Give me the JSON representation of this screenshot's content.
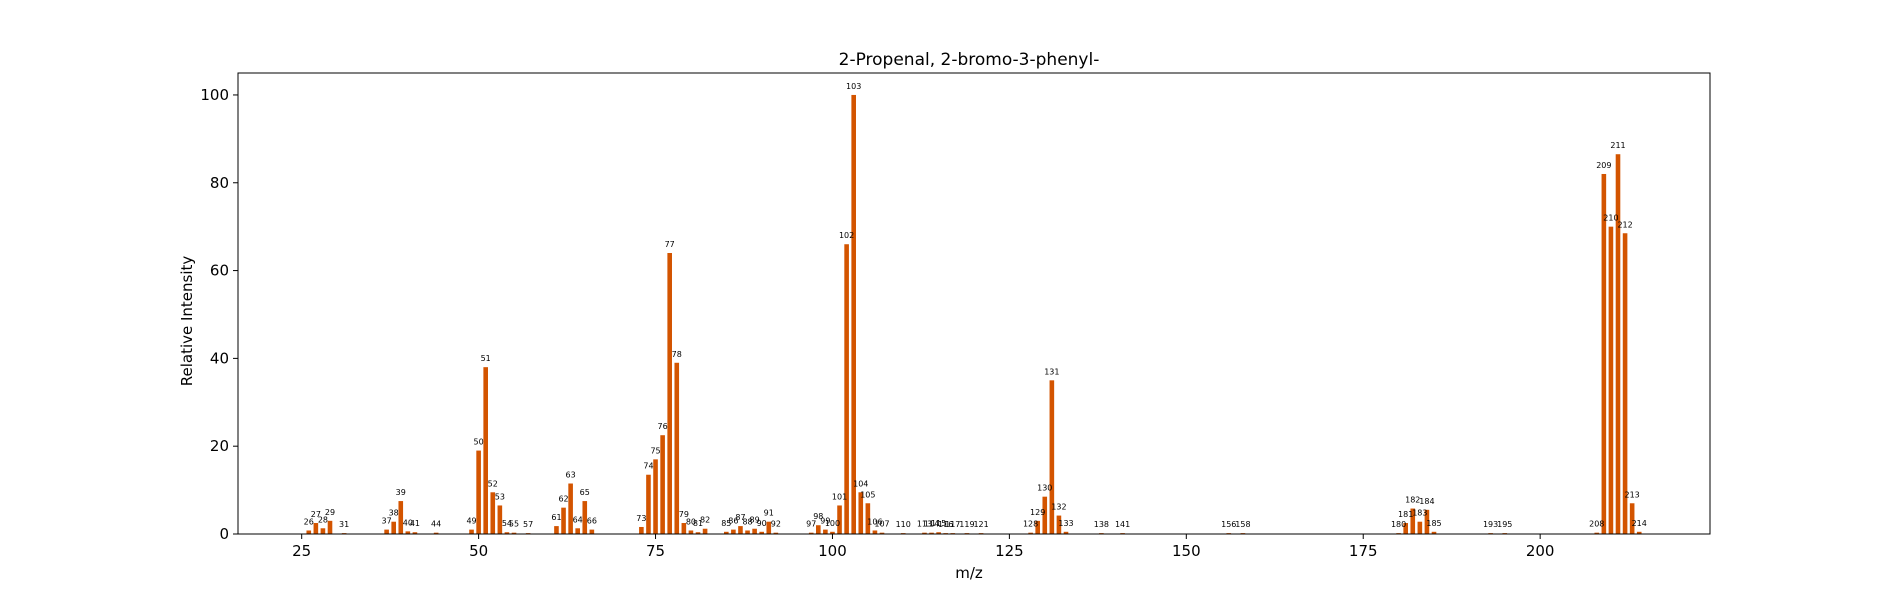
{
  "chart_data": {
    "type": "bar",
    "title": "2-Propenal, 2-bromo-3-phenyl-",
    "xlabel": "m/z",
    "ylabel": "Relative Intensity",
    "xlim": [
      16,
      224
    ],
    "ylim": [
      0,
      105
    ],
    "xticks": [
      25,
      50,
      75,
      100,
      125,
      150,
      175,
      200
    ],
    "yticks": [
      0,
      20,
      40,
      60,
      80,
      100
    ],
    "grid": false,
    "bar_color": "#d35400",
    "points": [
      {
        "x": 26,
        "y": 0.8,
        "label": "26"
      },
      {
        "x": 27,
        "y": 2.5,
        "label": "27"
      },
      {
        "x": 28,
        "y": 1.3,
        "label": "28"
      },
      {
        "x": 29,
        "y": 3.0,
        "label": "29"
      },
      {
        "x": 31,
        "y": 0.2,
        "label": "31"
      },
      {
        "x": 37,
        "y": 1.0,
        "label": "37"
      },
      {
        "x": 38,
        "y": 2.8,
        "label": "38"
      },
      {
        "x": 39,
        "y": 7.5,
        "label": "39"
      },
      {
        "x": 40,
        "y": 0.6,
        "label": "40"
      },
      {
        "x": 41,
        "y": 0.4,
        "label": "41"
      },
      {
        "x": 44,
        "y": 0.3,
        "label": "44"
      },
      {
        "x": 49,
        "y": 1.0,
        "label": "49"
      },
      {
        "x": 50,
        "y": 19.0,
        "label": "50"
      },
      {
        "x": 51,
        "y": 38.0,
        "label": "51"
      },
      {
        "x": 52,
        "y": 9.5,
        "label": "52"
      },
      {
        "x": 53,
        "y": 6.5,
        "label": "53"
      },
      {
        "x": 54,
        "y": 0.4,
        "label": "54"
      },
      {
        "x": 55,
        "y": 0.3,
        "label": "55"
      },
      {
        "x": 57,
        "y": 0.2,
        "label": "57"
      },
      {
        "x": 61,
        "y": 1.8,
        "label": "61"
      },
      {
        "x": 62,
        "y": 6.0,
        "label": "62"
      },
      {
        "x": 63,
        "y": 11.5,
        "label": "63"
      },
      {
        "x": 64,
        "y": 1.3,
        "label": "64"
      },
      {
        "x": 65,
        "y": 7.5,
        "label": "65"
      },
      {
        "x": 66,
        "y": 1.0,
        "label": "66"
      },
      {
        "x": 73,
        "y": 1.6,
        "label": "73"
      },
      {
        "x": 74,
        "y": 13.5,
        "label": "74"
      },
      {
        "x": 75,
        "y": 17.0,
        "label": "75"
      },
      {
        "x": 76,
        "y": 22.5,
        "label": "76"
      },
      {
        "x": 77,
        "y": 64.0,
        "label": "77"
      },
      {
        "x": 78,
        "y": 39.0,
        "label": "78"
      },
      {
        "x": 79,
        "y": 2.5,
        "label": "79"
      },
      {
        "x": 80,
        "y": 0.8,
        "label": "80"
      },
      {
        "x": 81,
        "y": 0.4,
        "label": "81"
      },
      {
        "x": 82,
        "y": 1.2,
        "label": "82"
      },
      {
        "x": 85,
        "y": 0.5,
        "label": "85"
      },
      {
        "x": 86,
        "y": 1.0,
        "label": "86"
      },
      {
        "x": 87,
        "y": 1.8,
        "label": "87"
      },
      {
        "x": 88,
        "y": 0.8,
        "label": "88"
      },
      {
        "x": 89,
        "y": 1.2,
        "label": "89"
      },
      {
        "x": 90,
        "y": 0.5,
        "label": "90"
      },
      {
        "x": 91,
        "y": 2.8,
        "label": "91"
      },
      {
        "x": 92,
        "y": 0.3,
        "label": "92"
      },
      {
        "x": 97,
        "y": 0.3,
        "label": "97"
      },
      {
        "x": 98,
        "y": 2.0,
        "label": "98"
      },
      {
        "x": 99,
        "y": 1.0,
        "label": "99"
      },
      {
        "x": 100,
        "y": 0.5,
        "label": "100"
      },
      {
        "x": 101,
        "y": 6.5,
        "label": "101"
      },
      {
        "x": 102,
        "y": 66.0,
        "label": "102"
      },
      {
        "x": 103,
        "y": 100.0,
        "label": "103"
      },
      {
        "x": 104,
        "y": 9.5,
        "label": "104"
      },
      {
        "x": 105,
        "y": 7.0,
        "label": "105"
      },
      {
        "x": 106,
        "y": 0.8,
        "label": "106"
      },
      {
        "x": 107,
        "y": 0.3,
        "label": "107"
      },
      {
        "x": 110,
        "y": 0.2,
        "label": "110"
      },
      {
        "x": 113,
        "y": 0.3,
        "label": "113"
      },
      {
        "x": 114,
        "y": 0.3,
        "label": "114"
      },
      {
        "x": 115,
        "y": 0.4,
        "label": "115"
      },
      {
        "x": 116,
        "y": 0.2,
        "label": "116"
      },
      {
        "x": 117,
        "y": 0.2,
        "label": "117"
      },
      {
        "x": 119,
        "y": 0.2,
        "label": "119"
      },
      {
        "x": 121,
        "y": 0.2,
        "label": "121"
      },
      {
        "x": 128,
        "y": 0.3,
        "label": "128"
      },
      {
        "x": 129,
        "y": 3.0,
        "label": "129"
      },
      {
        "x": 130,
        "y": 8.5,
        "label": "130"
      },
      {
        "x": 131,
        "y": 35.0,
        "label": "131"
      },
      {
        "x": 132,
        "y": 4.2,
        "label": "132"
      },
      {
        "x": 133,
        "y": 0.5,
        "label": "133"
      },
      {
        "x": 138,
        "y": 0.2,
        "label": "138"
      },
      {
        "x": 141,
        "y": 0.2,
        "label": "141"
      },
      {
        "x": 156,
        "y": 0.2,
        "label": "156"
      },
      {
        "x": 158,
        "y": 0.2,
        "label": "158"
      },
      {
        "x": 180,
        "y": 0.2,
        "label": "180"
      },
      {
        "x": 181,
        "y": 2.5,
        "label": "181"
      },
      {
        "x": 182,
        "y": 5.8,
        "label": "182"
      },
      {
        "x": 183,
        "y": 2.8,
        "label": "183"
      },
      {
        "x": 184,
        "y": 5.5,
        "label": "184"
      },
      {
        "x": 185,
        "y": 0.5,
        "label": "185"
      },
      {
        "x": 193,
        "y": 0.2,
        "label": "193"
      },
      {
        "x": 195,
        "y": 0.2,
        "label": "195"
      },
      {
        "x": 208,
        "y": 0.3,
        "label": "208"
      },
      {
        "x": 209,
        "y": 82.0,
        "label": "209"
      },
      {
        "x": 210,
        "y": 70.0,
        "label": "210"
      },
      {
        "x": 211,
        "y": 86.5,
        "label": "211"
      },
      {
        "x": 212,
        "y": 68.5,
        "label": "212"
      },
      {
        "x": 213,
        "y": 7.0,
        "label": "213"
      },
      {
        "x": 214,
        "y": 0.5,
        "label": "214"
      }
    ]
  }
}
